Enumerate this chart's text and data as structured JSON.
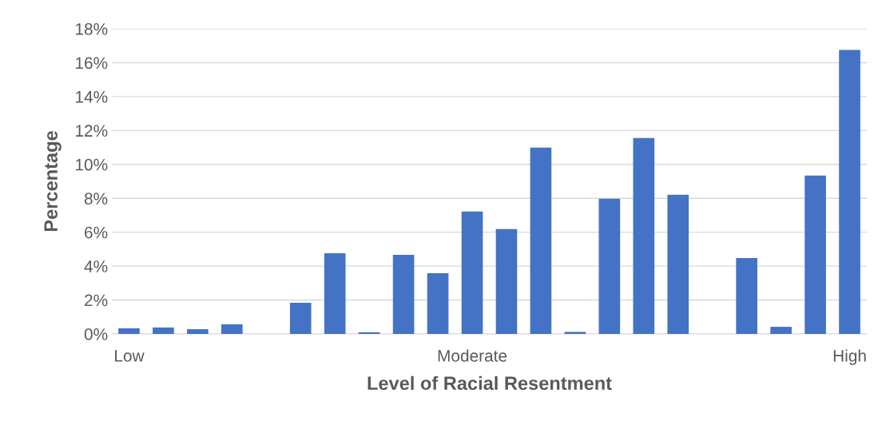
{
  "chart_data": {
    "type": "bar",
    "xlabel": "Level of Racial Resentment",
    "ylabel": "Percentage",
    "categories": [
      "Low",
      null,
      null,
      null,
      null,
      null,
      null,
      null,
      null,
      null,
      "Moderate",
      null,
      null,
      null,
      null,
      null,
      null,
      null,
      null,
      null,
      null,
      "High"
    ],
    "values": [
      0.33,
      0.38,
      0.28,
      0.57,
      0,
      1.84,
      4.76,
      0.1,
      4.67,
      3.58,
      7.22,
      6.18,
      10.99,
      0.12,
      7.97,
      11.56,
      8.21,
      0,
      4.48,
      0.42,
      9.34,
      16.75
    ],
    "color": "#4472c4",
    "ylim": [
      0,
      18
    ],
    "yticks": [
      {
        "value": 0,
        "label": "0%"
      },
      {
        "value": 2,
        "label": "2%"
      },
      {
        "value": 4,
        "label": "4%"
      },
      {
        "value": 6,
        "label": "6%"
      },
      {
        "value": 8,
        "label": "8%"
      },
      {
        "value": 10,
        "label": "10%"
      },
      {
        "value": 12,
        "label": "12%"
      },
      {
        "value": 14,
        "label": "14%"
      },
      {
        "value": 16,
        "label": "16%"
      },
      {
        "value": 18,
        "label": "18%"
      }
    ],
    "grid": "y",
    "legend": false
  }
}
